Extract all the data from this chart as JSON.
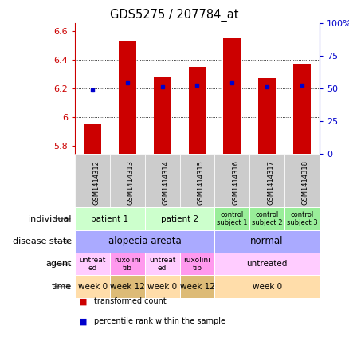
{
  "title": "GDS5275 / 207784_at",
  "samples": [
    "GSM1414312",
    "GSM1414313",
    "GSM1414314",
    "GSM1414315",
    "GSM1414316",
    "GSM1414317",
    "GSM1414318"
  ],
  "red_values": [
    5.95,
    6.53,
    6.28,
    6.35,
    6.55,
    6.27,
    6.37
  ],
  "blue_values": [
    6.19,
    6.24,
    6.21,
    6.22,
    6.24,
    6.21,
    6.22
  ],
  "ylim": [
    5.75,
    6.65
  ],
  "left_yticks": [
    5.8,
    6.0,
    6.2,
    6.4,
    6.6
  ],
  "left_yticklabels": [
    "5.8",
    "6",
    "6.2",
    "6.4",
    "6.6"
  ],
  "right_yticks": [
    0,
    25,
    50,
    75,
    100
  ],
  "right_yticklabels": [
    "0",
    "25",
    "50",
    "75",
    "100%"
  ],
  "bar_color": "#cc0000",
  "dot_color": "#0000cc",
  "grid_yticks": [
    6.0,
    6.2,
    6.4
  ],
  "sample_bg_color": "#cccccc",
  "individual_groups": [
    {
      "cols": [
        0,
        1
      ],
      "label": "patient 1",
      "color": "#ccffcc"
    },
    {
      "cols": [
        2,
        3
      ],
      "label": "patient 2",
      "color": "#ccffcc"
    },
    {
      "cols": [
        4
      ],
      "label": "control\nsubject 1",
      "color": "#99ee99"
    },
    {
      "cols": [
        5
      ],
      "label": "control\nsubject 2",
      "color": "#99ee99"
    },
    {
      "cols": [
        6
      ],
      "label": "control\nsubject 3",
      "color": "#99ee99"
    }
  ],
  "disease_groups": [
    {
      "cols": [
        0,
        1,
        2,
        3
      ],
      "label": "alopecia areata",
      "color": "#aaaaff"
    },
    {
      "cols": [
        4,
        5,
        6
      ],
      "label": "normal",
      "color": "#aaaaff"
    }
  ],
  "agent_groups": [
    {
      "cols": [
        0
      ],
      "label": "untreat\ned",
      "color": "#ffccff"
    },
    {
      "cols": [
        1
      ],
      "label": "ruxolini\ntib",
      "color": "#ff99ee"
    },
    {
      "cols": [
        2
      ],
      "label": "untreat\ned",
      "color": "#ffccff"
    },
    {
      "cols": [
        3
      ],
      "label": "ruxolini\ntib",
      "color": "#ff99ee"
    },
    {
      "cols": [
        4,
        5,
        6
      ],
      "label": "untreated",
      "color": "#ffccff"
    }
  ],
  "time_groups": [
    {
      "cols": [
        0
      ],
      "label": "week 0",
      "color": "#ffddaa"
    },
    {
      "cols": [
        1
      ],
      "label": "week 12",
      "color": "#ddbb77"
    },
    {
      "cols": [
        2
      ],
      "label": "week 0",
      "color": "#ffddaa"
    },
    {
      "cols": [
        3
      ],
      "label": "week 12",
      "color": "#ddbb77"
    },
    {
      "cols": [
        4,
        5,
        6
      ],
      "label": "week 0",
      "color": "#ffddaa"
    }
  ],
  "row_labels": [
    "individual",
    "disease state",
    "agent",
    "time"
  ],
  "legend_items": [
    {
      "color": "#cc0000",
      "label": "transformed count"
    },
    {
      "color": "#0000cc",
      "label": "percentile rank within the sample"
    }
  ],
  "arrow_color": "#888888",
  "n_cols": 7
}
